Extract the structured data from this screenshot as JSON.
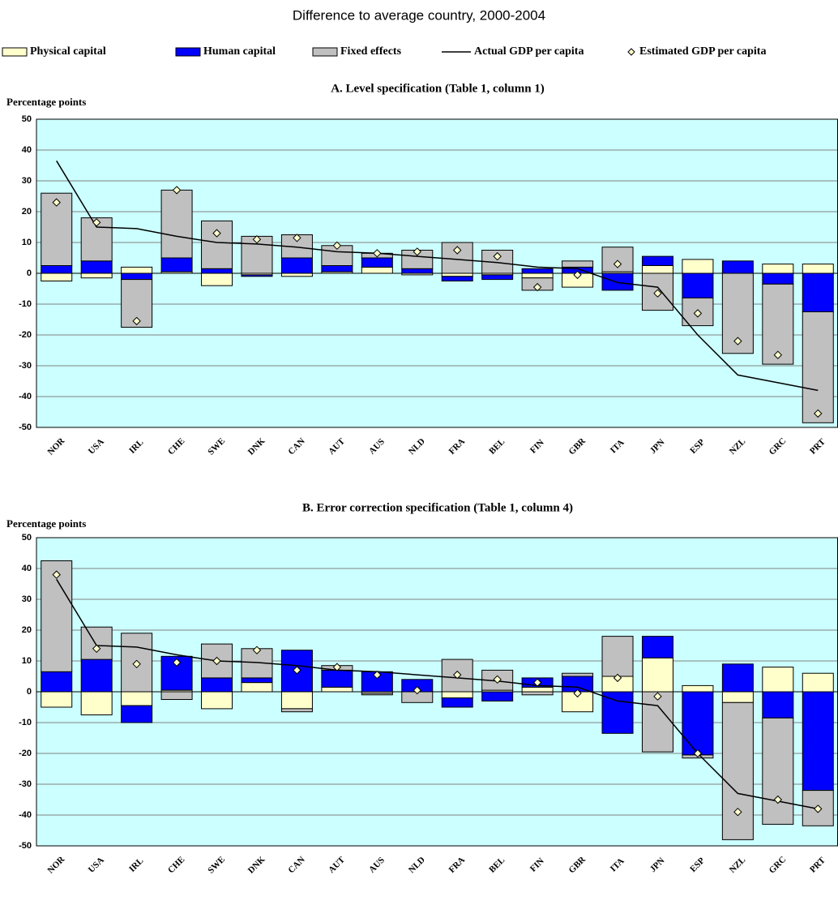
{
  "title": "Difference to average country, 2000-2004",
  "chart_data": [
    {
      "type": "bar",
      "title": "A. Level specification (Table 1, column 1)",
      "y_label": "Percentage points",
      "categories": [
        "NOR",
        "USA",
        "IRL",
        "CHE",
        "SWE",
        "DNK",
        "CAN",
        "AUT",
        "AUS",
        "NLD",
        "FRA",
        "BEL",
        "FIN",
        "GBR",
        "ITA",
        "JPN",
        "ESP",
        "NZL",
        "GRC",
        "PRT"
      ],
      "ylim": [
        -50,
        50
      ],
      "yticks": [
        -50,
        -40,
        -30,
        -20,
        -10,
        0,
        10,
        20,
        30,
        40,
        50
      ],
      "grid": true,
      "stacked": true,
      "background": "#ccffff",
      "series": [
        {
          "name": "Physical capital",
          "type": "bar",
          "color": "#ffffcc",
          "values": [
            -2.5,
            -1.5,
            2,
            0.5,
            -4,
            -0.5,
            -1,
            0.5,
            2,
            -0.5,
            -1,
            -0.5,
            -1.5,
            -4.5,
            0.5,
            2.5,
            4.5,
            0,
            3,
            3
          ]
        },
        {
          "name": "Human capital",
          "type": "bar",
          "color": "#0000ff",
          "values": [
            2.5,
            4,
            -2,
            4.5,
            1.5,
            -0.5,
            5,
            2,
            3,
            1.5,
            -1.5,
            -1.5,
            1.5,
            2,
            -5.5,
            3,
            -8,
            4,
            -3.5,
            -12.5
          ]
        },
        {
          "name": "Fixed effects",
          "type": "bar",
          "color": "#c0c0c0",
          "values": [
            23.5,
            14,
            -15.5,
            22,
            15.5,
            12,
            7.5,
            6.5,
            1.5,
            6,
            10,
            7.5,
            -4,
            2,
            8,
            -12,
            -9,
            -26,
            -26,
            -36
          ]
        },
        {
          "name": "Actual GDP per capita",
          "type": "line",
          "color": "#000000",
          "values": [
            36.5,
            15,
            14.5,
            12,
            10,
            9.5,
            8.5,
            7,
            6.5,
            5.5,
            4.5,
            3.5,
            2,
            1.5,
            -3,
            -4.5,
            -20,
            -33,
            -35.5,
            -38
          ]
        },
        {
          "name": "Estimated GDP per capita",
          "type": "scatter",
          "color": "#ffffcc",
          "values": [
            23,
            16.5,
            -15.5,
            27,
            13,
            11,
            11.5,
            9,
            6.5,
            7,
            7.5,
            5.5,
            -4.5,
            -0.5,
            3,
            -6.5,
            -13,
            -22,
            -26.5,
            -45.5
          ]
        }
      ]
    },
    {
      "type": "bar",
      "title": "B. Error correction specification (Table 1, column 4)",
      "y_label": "Percentage points",
      "categories": [
        "NOR",
        "USA",
        "IRL",
        "CHE",
        "SWE",
        "DNK",
        "CAN",
        "AUT",
        "AUS",
        "NLD",
        "FRA",
        "BEL",
        "FIN",
        "GBR",
        "ITA",
        "JPN",
        "ESP",
        "NZL",
        "GRC",
        "PRT"
      ],
      "ylim": [
        -50,
        50
      ],
      "yticks": [
        -50,
        -40,
        -30,
        -20,
        -10,
        0,
        10,
        20,
        30,
        40,
        50
      ],
      "grid": true,
      "stacked": true,
      "background": "#ccffff",
      "series": [
        {
          "name": "Physical capital",
          "type": "bar",
          "color": "#ffffcc",
          "values": [
            -5,
            -7.5,
            -4.5,
            0.5,
            -5.5,
            3,
            -5.5,
            1.5,
            -0.5,
            0,
            -2,
            0.5,
            1.5,
            -6.5,
            5,
            11,
            2,
            -3.5,
            8,
            6
          ]
        },
        {
          "name": "Human capital",
          "type": "bar",
          "color": "#0000ff",
          "values": [
            6.5,
            10.5,
            -5.5,
            11,
            4.5,
            1.5,
            13.5,
            5.5,
            6.5,
            4,
            -3,
            -3,
            3,
            5,
            -13.5,
            7,
            -20.5,
            9,
            -8.5,
            -32
          ]
        },
        {
          "name": "Fixed effects",
          "type": "bar",
          "color": "#c0c0c0",
          "values": [
            36,
            10.5,
            19,
            -2.5,
            11,
            9.5,
            -1,
            1.5,
            -0.5,
            -3.5,
            10.5,
            6.5,
            -1,
            1,
            13,
            -19.5,
            -1,
            -44.5,
            -34.5,
            -11.5
          ]
        },
        {
          "name": "Actual GDP per capita",
          "type": "line",
          "color": "#000000",
          "values": [
            36.5,
            15,
            14.5,
            12,
            10,
            9.5,
            8.5,
            7,
            6.5,
            5.5,
            4.5,
            3.5,
            2,
            1.5,
            -3,
            -4.5,
            -20,
            -33,
            -35.5,
            -38
          ]
        },
        {
          "name": "Estimated GDP per capita",
          "type": "scatter",
          "color": "#ffffcc",
          "values": [
            38,
            14,
            9,
            9.5,
            10,
            13.5,
            7,
            8,
            5.5,
            0.5,
            5.5,
            4,
            3,
            -0.5,
            4.5,
            -1.5,
            -20,
            -39,
            -35,
            -38
          ]
        }
      ]
    }
  ]
}
